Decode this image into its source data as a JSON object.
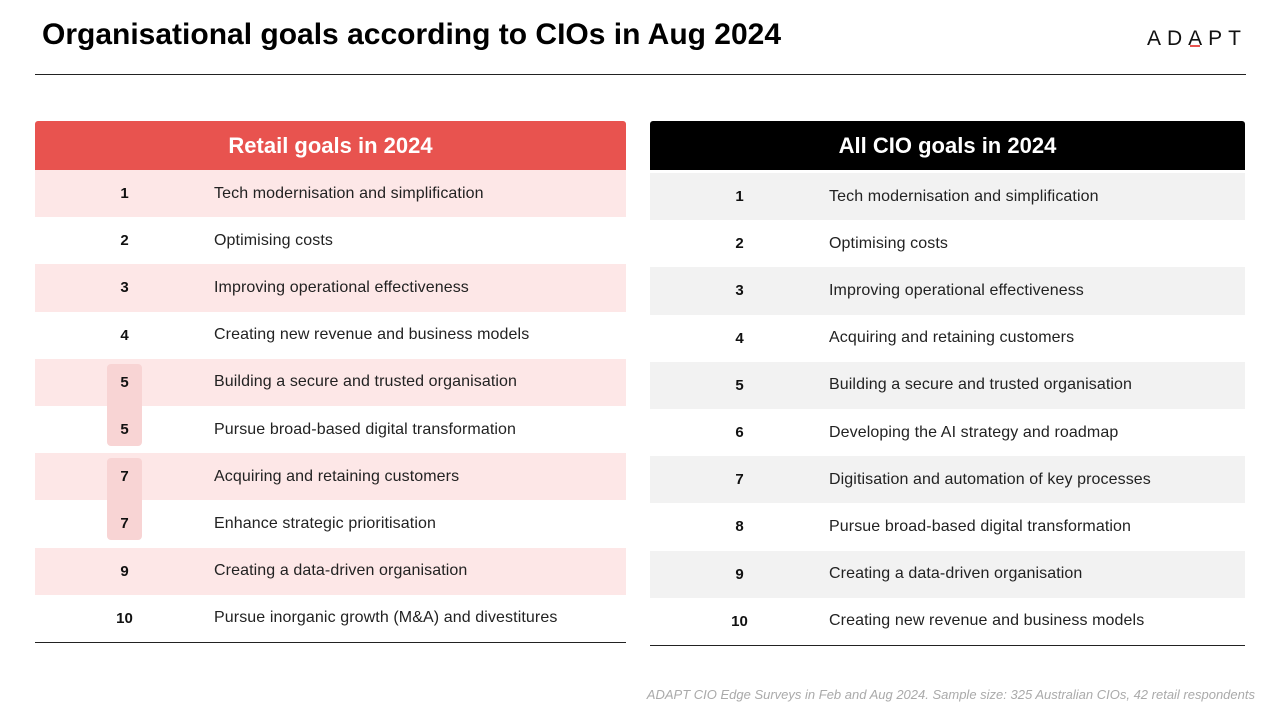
{
  "title": "Organisational goals according to CIOs in Aug 2024",
  "logo": {
    "text": "ADAPT",
    "accent_color": "#e8534f"
  },
  "left_panel": {
    "header": "Retail goals in 2024",
    "header_color": "#e8534f",
    "rows": [
      {
        "rank": "1",
        "goal": "Tech modernisation and simplification"
      },
      {
        "rank": "2",
        "goal": "Optimising costs"
      },
      {
        "rank": "3",
        "goal": "Improving operational effectiveness"
      },
      {
        "rank": "4",
        "goal": "Creating new revenue and business models"
      },
      {
        "rank": "5",
        "goal": "Building a secure and trusted organisation"
      },
      {
        "rank": "5",
        "goal": "Pursue broad-based digital transformation"
      },
      {
        "rank": "7",
        "goal": "Acquiring and retaining customers"
      },
      {
        "rank": "7",
        "goal": "Enhance strategic prioritisation"
      },
      {
        "rank": "9",
        "goal": "Creating a data-driven organisation"
      },
      {
        "rank": "10",
        "goal": "Pursue inorganic growth (M&A) and divestitures"
      }
    ]
  },
  "right_panel": {
    "header": "All CIO goals in 2024",
    "header_color": "#000000",
    "rows": [
      {
        "rank": "1",
        "goal": "Tech modernisation and simplification"
      },
      {
        "rank": "2",
        "goal": "Optimising costs"
      },
      {
        "rank": "3",
        "goal": "Improving operational effectiveness"
      },
      {
        "rank": "4",
        "goal": "Acquiring and retaining customers"
      },
      {
        "rank": "5",
        "goal": "Building a secure and trusted organisation"
      },
      {
        "rank": "6",
        "goal": "Developing the AI strategy and roadmap"
      },
      {
        "rank": "7",
        "goal": "Digitisation and automation of key processes"
      },
      {
        "rank": "8",
        "goal": "Pursue broad-based digital transformation"
      },
      {
        "rank": "9",
        "goal": "Creating a data-driven organisation"
      },
      {
        "rank": "10",
        "goal": "Creating new revenue and business models"
      }
    ]
  },
  "footnote": "ADAPT CIO Edge Surveys in Feb and Aug 2024. Sample size: 325 Australian CIOs, 42 retail respondents"
}
